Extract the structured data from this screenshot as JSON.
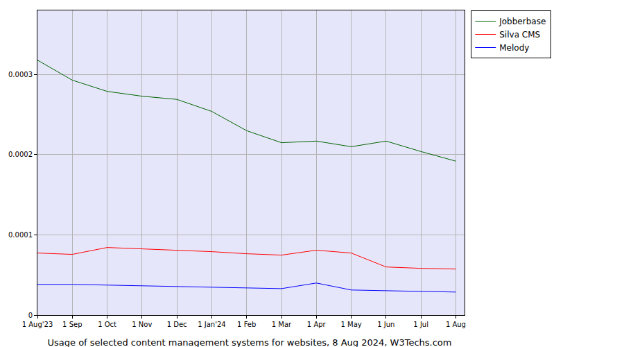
{
  "chart_data": {
    "type": "line",
    "title": "Usage of selected content management systems for websites, 8 Aug 2024, W3Techs.com",
    "categories": [
      "1 Aug'23",
      "1 Sep",
      "1 Oct",
      "1 Nov",
      "1 Dec",
      "1 Jan'24",
      "1 Feb",
      "1 Mar",
      "1 Apr",
      "1 May",
      "1 Jun",
      "1 Jul",
      "1 Aug"
    ],
    "series": [
      {
        "name": "Jobberbase",
        "color": "#006400",
        "values": [
          0.000318,
          0.000293,
          0.000279,
          0.000273,
          0.000269,
          0.000254,
          0.00023,
          0.000215,
          0.000217,
          0.00021,
          0.000217,
          0.000204,
          0.000192
        ]
      },
      {
        "name": "Silva CMS",
        "color": "#ff0000",
        "values": [
          7.74e-05,
          7.57e-05,
          8.43e-05,
          8.26e-05,
          8.09e-05,
          7.91e-05,
          7.65e-05,
          7.48e-05,
          8.09e-05,
          7.74e-05,
          6e-05,
          5.83e-05,
          5.74e-05
        ]
      },
      {
        "name": "Melody",
        "color": "#0000ff",
        "values": [
          3.83e-05,
          3.83e-05,
          3.74e-05,
          3.65e-05,
          3.57e-05,
          3.48e-05,
          3.39e-05,
          3.3e-05,
          4e-05,
          3.13e-05,
          3.04e-05,
          2.96e-05,
          2.87e-05
        ]
      }
    ],
    "ylim": [
      0,
      0.00038
    ],
    "yticks": [
      0,
      0.0001,
      0.0002,
      0.0003
    ],
    "grid": true,
    "legend": "upper right"
  }
}
